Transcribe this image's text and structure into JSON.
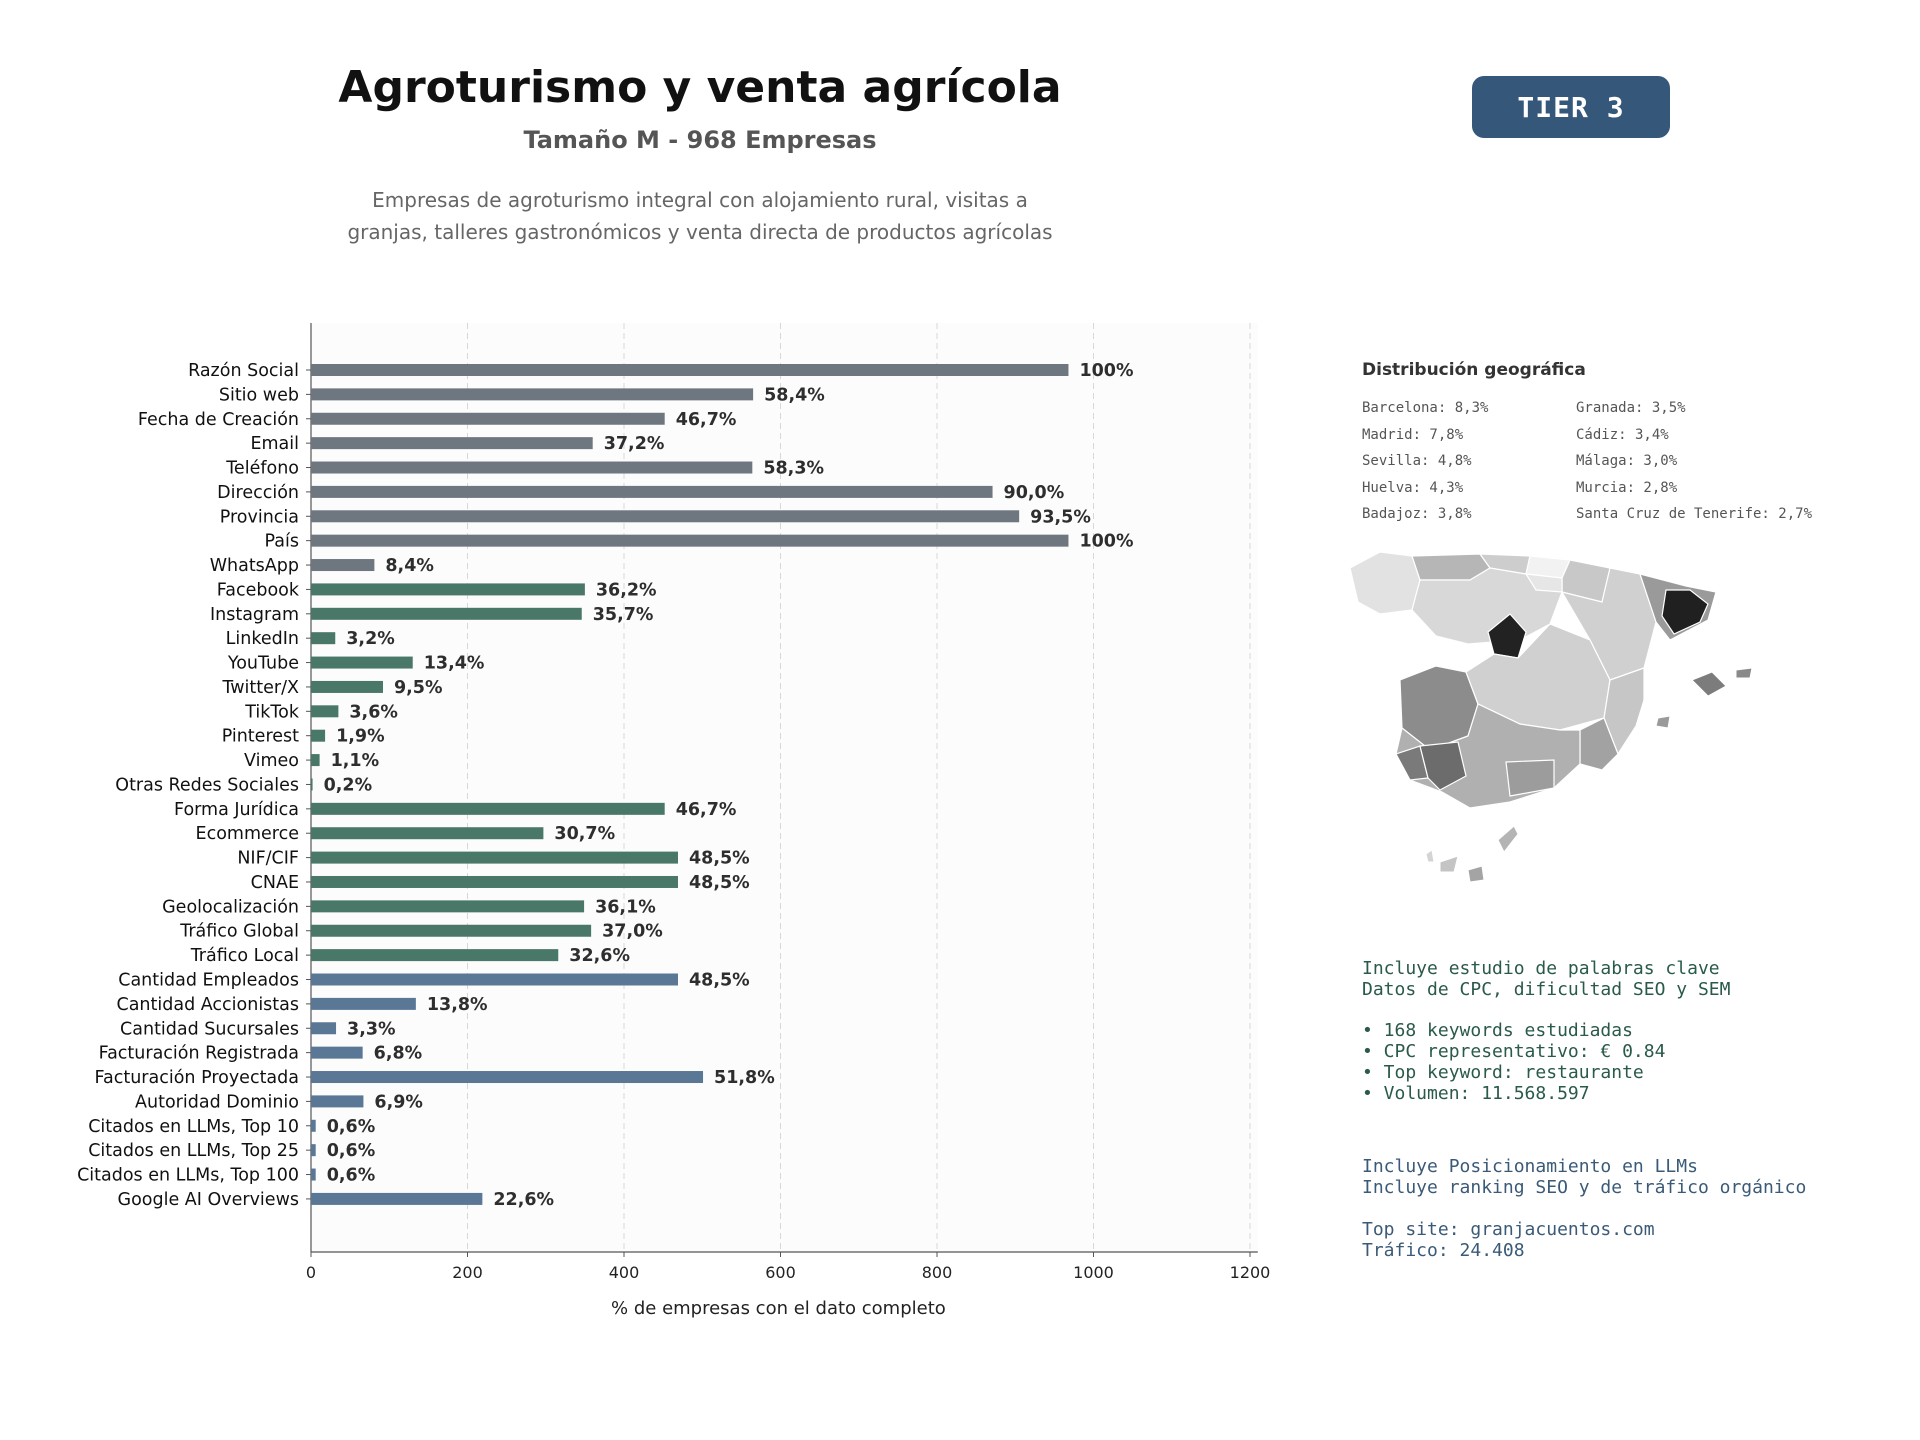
{
  "header": {
    "title": "Agroturismo y venta agrícola",
    "subtitle": "Tamaño M - 968 Empresas",
    "description_line1": "Empresas de agroturismo integral con alojamiento rural, visitas a",
    "description_line2": "granjas, talleres gastronómicos y venta directa de productos agrícolas",
    "tier": "TIER 3"
  },
  "colors": {
    "basic": "#6e7780",
    "social": "#4a7868",
    "business": "#5a7896",
    "badge": "#34577a"
  },
  "chart_data": {
    "type": "bar",
    "orientation": "horizontal",
    "xlabel": "% de empresas con el dato completo",
    "xlim": [
      0,
      1210
    ],
    "xticks": [
      "0",
      "200",
      "400",
      "600",
      "800",
      "1000",
      "1200"
    ],
    "grid": "vertical dashed",
    "categories": [
      "Razón Social",
      "Sitio web",
      "Fecha de Creación",
      "Email",
      "Teléfono",
      "Dirección",
      "Provincia",
      "País",
      "WhatsApp",
      "Facebook",
      "Instagram",
      "LinkedIn",
      "YouTube",
      "Twitter/X",
      "TikTok",
      "Pinterest",
      "Vimeo",
      "Otras Redes Sociales",
      "Forma Jurídica",
      "Ecommerce",
      "NIF/CIF",
      "CNAE",
      "Geolocalización",
      "Tráfico Global",
      "Tráfico Local",
      "Cantidad Empleados",
      "Cantidad Accionistas",
      "Cantidad Sucursales",
      "Facturación Registrada",
      "Facturación Proyectada",
      "Autoridad Dominio",
      "Citados en LLMs, Top 10",
      "Citados en LLMs, Top 25",
      "Citados en LLMs, Top 100",
      "Google AI Overviews"
    ],
    "values": [
      968,
      565,
      452,
      360,
      564,
      871,
      905,
      968,
      81,
      350,
      346,
      31,
      130,
      92,
      35,
      18,
      11,
      2,
      452,
      297,
      469,
      469,
      349,
      358,
      316,
      469,
      134,
      32,
      66,
      501,
      67,
      6,
      6,
      6,
      219
    ],
    "labels": [
      "100%",
      "58,4%",
      "46,7%",
      "37,2%",
      "58,3%",
      "90,0%",
      "93,5%",
      "100%",
      "8,4%",
      "36,2%",
      "35,7%",
      "3,2%",
      "13,4%",
      "9,5%",
      "3,6%",
      "1,9%",
      "1,1%",
      "0,2%",
      "46,7%",
      "30,7%",
      "48,5%",
      "48,5%",
      "36,1%",
      "37,0%",
      "32,6%",
      "48,5%",
      "13,8%",
      "3,3%",
      "6,8%",
      "51,8%",
      "6,9%",
      "0,6%",
      "0,6%",
      "0,6%",
      "22,6%"
    ],
    "groups": [
      "basic",
      "basic",
      "basic",
      "basic",
      "basic",
      "basic",
      "basic",
      "basic",
      "basic",
      "social",
      "social",
      "social",
      "social",
      "social",
      "social",
      "social",
      "social",
      "social",
      "social",
      "social",
      "social",
      "social",
      "social",
      "social",
      "social",
      "business",
      "business",
      "business",
      "business",
      "business",
      "business",
      "business",
      "business",
      "business",
      "business"
    ]
  },
  "geo": {
    "title": "Distribución geográfica",
    "left": [
      "Barcelona: 8,3%",
      "Madrid: 7,8%",
      "Sevilla: 4,8%",
      "Huelva: 4,3%",
      "Badajoz: 3,8%"
    ],
    "right": [
      "Granada: 3,5%",
      "Cádiz: 3,4%",
      "Málaga: 3,0%",
      "Murcia: 2,8%",
      "Santa Cruz de Tenerife: 2,7%"
    ]
  },
  "keywords": {
    "line1": "Incluye estudio de palabras clave",
    "line2": "Datos de CPC, dificultad SEO y SEM",
    "bullet1": "• 168 keywords estudiadas",
    "bullet2": "• CPC representativo: € 0.84",
    "bullet3": "• Top keyword: restaurante",
    "bullet4": "• Volumen: 11.568.597"
  },
  "llm": {
    "line1": "Incluye Posicionamiento en LLMs",
    "line2": "Incluye ranking SEO y de tráfico orgánico",
    "top_site": "Top site: granjacuentos.com",
    "traffic": "Tráfico: 24.408"
  }
}
